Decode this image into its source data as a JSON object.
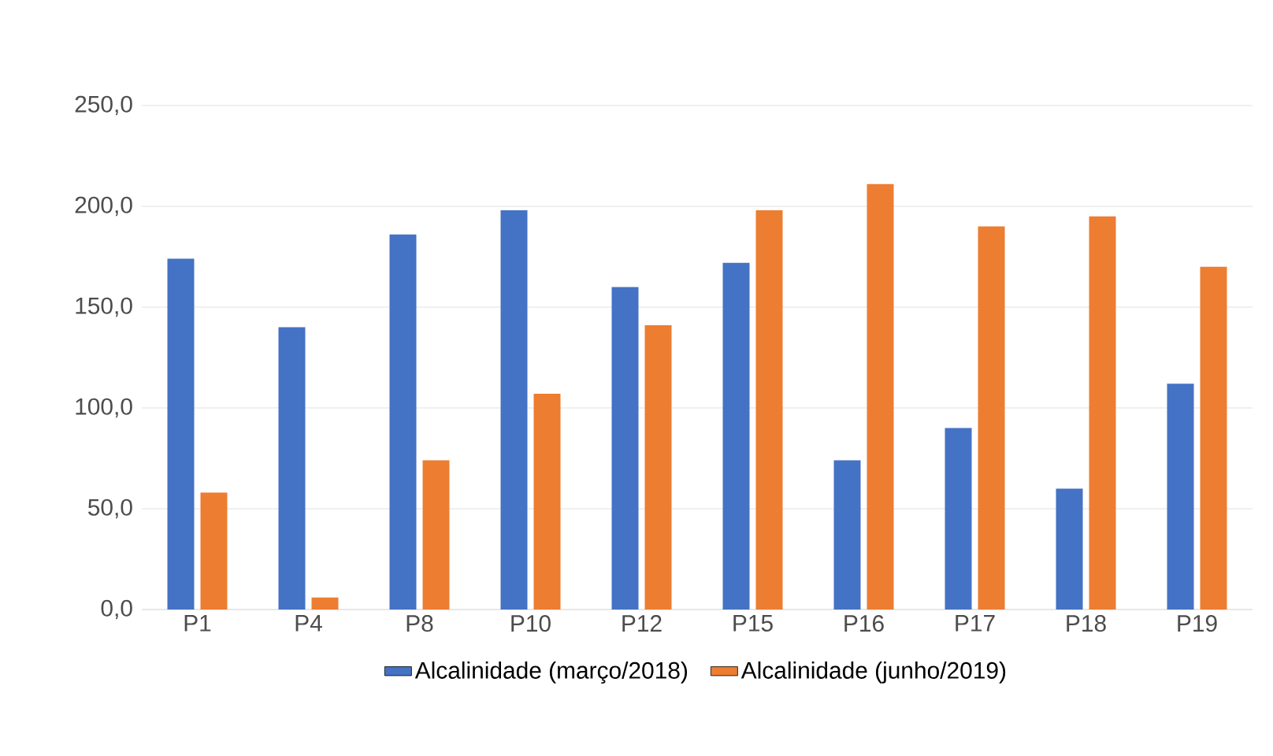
{
  "chart_data": {
    "type": "bar",
    "categories": [
      "P1",
      "P4",
      "P8",
      "P10",
      "P12",
      "P15",
      "P16",
      "P17",
      "P18",
      "P19"
    ],
    "series": [
      {
        "name": "Alcalinidade (março/2018)",
        "color": "#4472c4",
        "values": [
          174,
          140,
          186,
          198,
          160,
          172,
          74,
          90,
          60,
          112
        ]
      },
      {
        "name": "Alcalinidade (junho/2019)",
        "color": "#ed7d31",
        "values": [
          58,
          6,
          74,
          107,
          141,
          198,
          211,
          190,
          195,
          170
        ]
      }
    ],
    "ylim": [
      0,
      250
    ],
    "yticks": [
      {
        "value": 0,
        "label": "0,0"
      },
      {
        "value": 50,
        "label": "50,0"
      },
      {
        "value": 100,
        "label": "100,0"
      },
      {
        "value": 150,
        "label": "150,0"
      },
      {
        "value": 200,
        "label": "200,0"
      },
      {
        "value": 250,
        "label": "250,0"
      }
    ],
    "grid": "y",
    "legend": "bottom"
  }
}
